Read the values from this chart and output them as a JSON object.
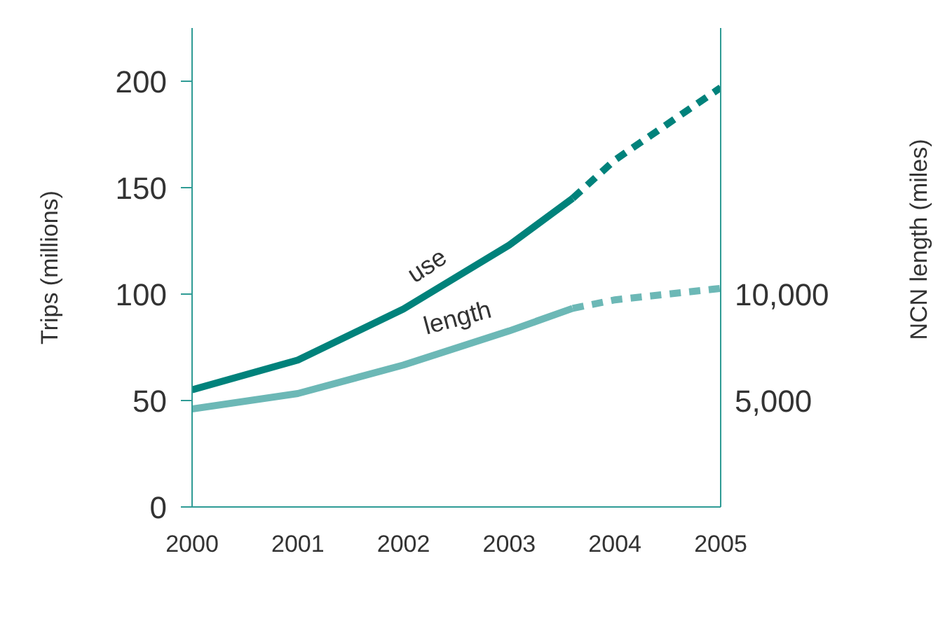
{
  "chart_data": {
    "type": "line",
    "ylabel": "Trips (millions)",
    "y2label": "NCN length (miles)",
    "xlim": [
      2000,
      2005
    ],
    "xticks": [
      2000,
      2001,
      2002,
      2003,
      2004,
      2005
    ],
    "ylim": [
      0,
      225
    ],
    "yticks": [
      0,
      50,
      100,
      150,
      200
    ],
    "y2lim": [
      0,
      22500
    ],
    "y2ticks": [
      {
        "value": 5000,
        "label": "5,000"
      },
      {
        "value": 10000,
        "label": "10,000"
      }
    ],
    "marker": "none",
    "series": [
      {
        "name": "use",
        "color": "#00827b",
        "x": [
          2000,
          2001,
          2002,
          2003,
          2003.6
        ],
        "values": [
          55,
          69,
          93,
          123,
          145
        ],
        "line_style": "solid"
      },
      {
        "color": "#00827b",
        "x": [
          2003.6,
          2004,
          2005
        ],
        "values": [
          145,
          163,
          197
        ],
        "line_style": "dashed"
      },
      {
        "name": "length",
        "color": "#6cb8b6",
        "axis": "y2",
        "x": [
          2000,
          2001,
          2002,
          2003,
          2003.6
        ],
        "values": [
          4600,
          5330,
          6670,
          8270,
          9330
        ],
        "line_style": "solid"
      },
      {
        "color": "#6cb8b6",
        "axis": "y2",
        "x": [
          2003.6,
          2004,
          2005
        ],
        "values": [
          9330,
          9730,
          10270
        ],
        "line_style": "dashed"
      }
    ]
  }
}
